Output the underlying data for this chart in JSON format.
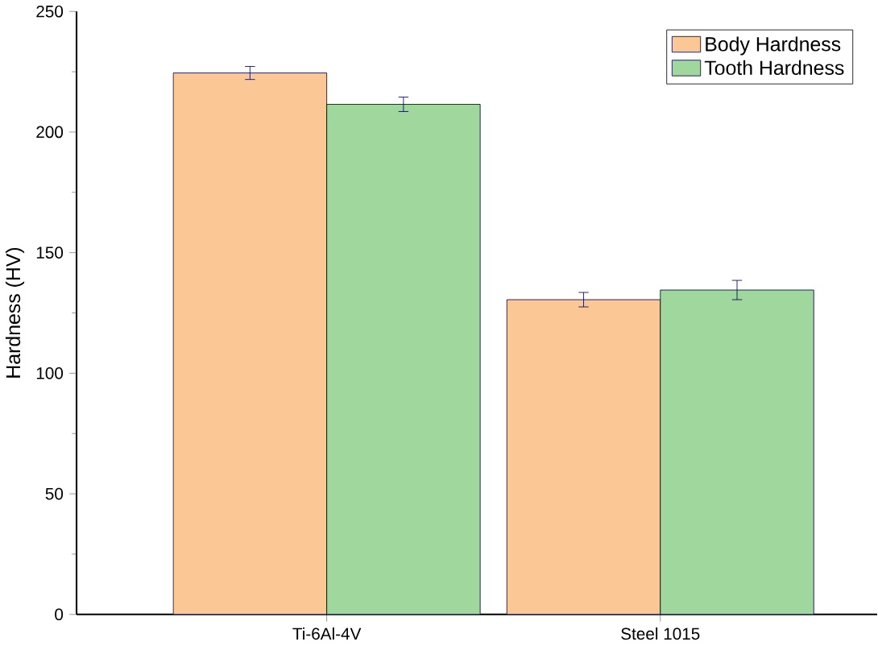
{
  "chart_data": {
    "type": "bar",
    "ylabel": "Hardness (HV)",
    "categories": [
      "Ti-6Al-4V",
      "Steel 1015"
    ],
    "series": [
      {
        "name": "Body Hardness",
        "color": "#fbc795",
        "values": [
          224.5,
          130.5
        ],
        "errors": [
          2.7,
          3
        ]
      },
      {
        "name": "Tooth Hardness",
        "color": "#9fd79c",
        "values": [
          211.5,
          134.5
        ],
        "errors": [
          3,
          4
        ]
      }
    ],
    "ylim": [
      0,
      250
    ],
    "yticks": [
      0,
      50,
      100,
      150,
      200,
      250
    ],
    "legend": "top right",
    "grid": false
  }
}
